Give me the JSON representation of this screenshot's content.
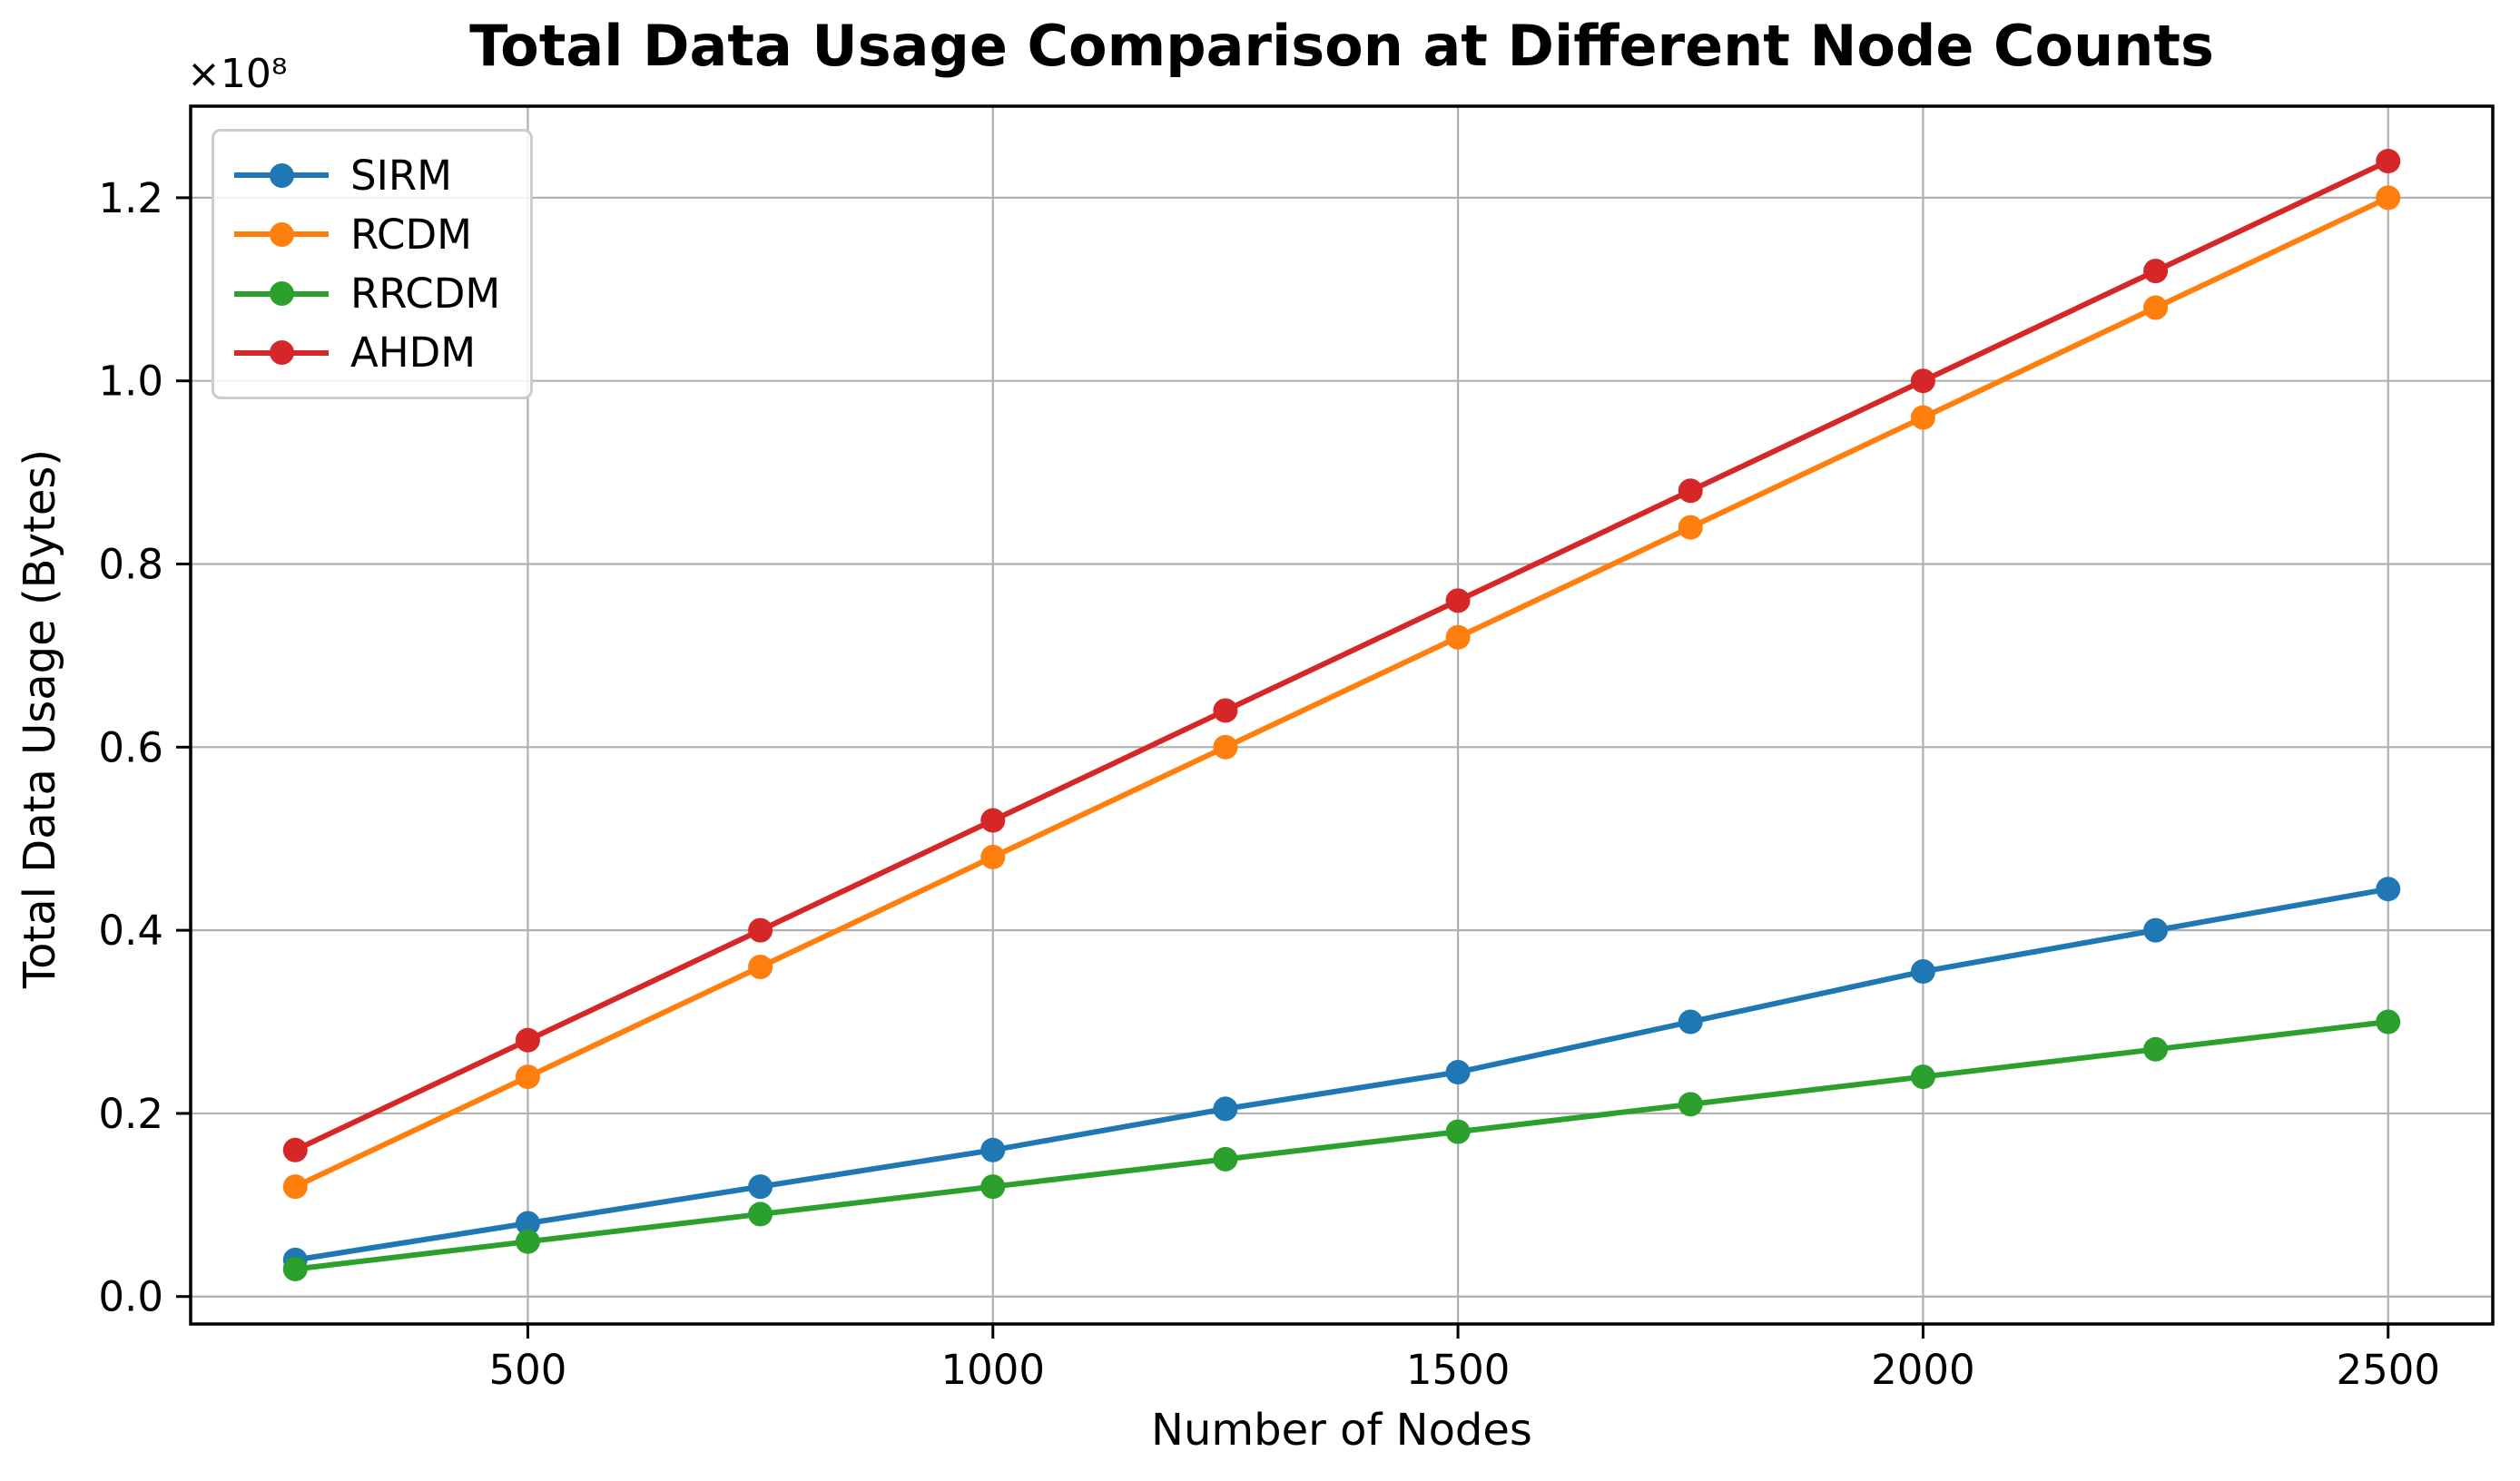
{
  "chart_data": {
    "type": "line",
    "title": "Total Data Usage Comparison at Different Node Counts",
    "xlabel": "Number of Nodes",
    "ylabel": "Total Data Usage (Bytes)",
    "offset_text": "×10⁸",
    "values_unit": "×10⁸ Bytes",
    "x": [
      250,
      500,
      750,
      1000,
      1250,
      1500,
      1750,
      2000,
      2250,
      2500
    ],
    "series": [
      {
        "name": "SIRM",
        "color": "#1f77b4",
        "values": [
          0.04,
          0.08,
          0.12,
          0.16,
          0.205,
          0.245,
          0.3,
          0.355,
          0.4,
          0.445
        ]
      },
      {
        "name": "RCDM",
        "color": "#ff7f0e",
        "values": [
          0.12,
          0.24,
          0.36,
          0.48,
          0.6,
          0.72,
          0.84,
          0.96,
          1.08,
          1.2
        ]
      },
      {
        "name": "RRCDM",
        "color": "#2ca02c",
        "values": [
          0.03,
          0.06,
          0.09,
          0.12,
          0.15,
          0.18,
          0.21,
          0.24,
          0.27,
          0.3
        ]
      },
      {
        "name": "AHDM",
        "color": "#d62728",
        "values": [
          0.16,
          0.28,
          0.4,
          0.52,
          0.64,
          0.76,
          0.88,
          1.0,
          1.12,
          1.24
        ]
      }
    ],
    "xticks": [
      "500",
      "1000",
      "1500",
      "2000",
      "2500"
    ],
    "xtick_values": [
      500,
      1000,
      1500,
      2000,
      2500
    ],
    "yticks": [
      "0.0",
      "0.2",
      "0.4",
      "0.6",
      "0.8",
      "1.0",
      "1.2"
    ],
    "ytick_values": [
      0,
      0.2,
      0.4,
      0.6,
      0.8,
      1.0,
      1.2
    ],
    "xlim": [
      137.5,
      2612.5
    ],
    "ylim": [
      -0.03,
      1.3
    ],
    "grid": true,
    "legend_position": "upper left",
    "grid_color": "#b0b0b0",
    "spine_color": "#000000"
  }
}
